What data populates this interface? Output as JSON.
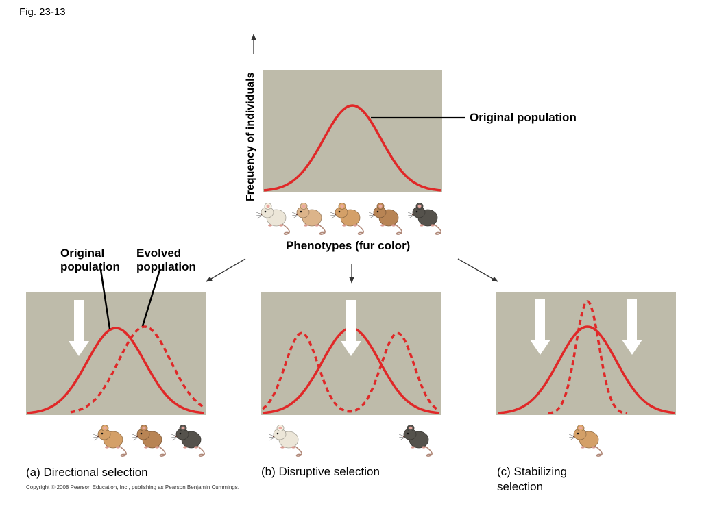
{
  "figure_label": "Fig. 23-13",
  "top_panel": {
    "y_axis_label": "Frequency of individuals",
    "x_axis_label": "Phenotypes (fur color)",
    "curve_label": "Original population",
    "phenotype_icons": [
      "white-mouse-icon",
      "light-tan-mouse-icon",
      "tan-mouse-icon",
      "brown-mouse-icon",
      "dark-gray-mouse-icon"
    ]
  },
  "panel_a": {
    "caption": "(a) Directional selection",
    "label_original": [
      "Original",
      "population"
    ],
    "label_evolved": [
      "Evolved",
      "population"
    ],
    "survivor_icons": [
      "tan-mouse-icon",
      "brown-mouse-icon",
      "dark-gray-mouse-icon"
    ]
  },
  "panel_b": {
    "caption": "(b) Disruptive selection",
    "survivor_icons": [
      "white-mouse-icon",
      "dark-gray-mouse-icon"
    ]
  },
  "panel_c": {
    "caption": "(c) Stabilizing selection",
    "survivor_icons": [
      "tan-mouse-icon"
    ]
  },
  "copyright": "Copyright © 2008 Pearson Education, Inc., publishing as Pearson Benjamin Cummings.",
  "colors": {
    "panel_bg": "#bebbaa",
    "curve": "#e02828",
    "arrow_fill": "#ffffff",
    "mouse_white": "#ece6d8",
    "mouse_light_tan": "#dcb48a",
    "mouse_tan": "#d4a068",
    "mouse_brown": "#b88454",
    "mouse_dark": "#55524c"
  }
}
